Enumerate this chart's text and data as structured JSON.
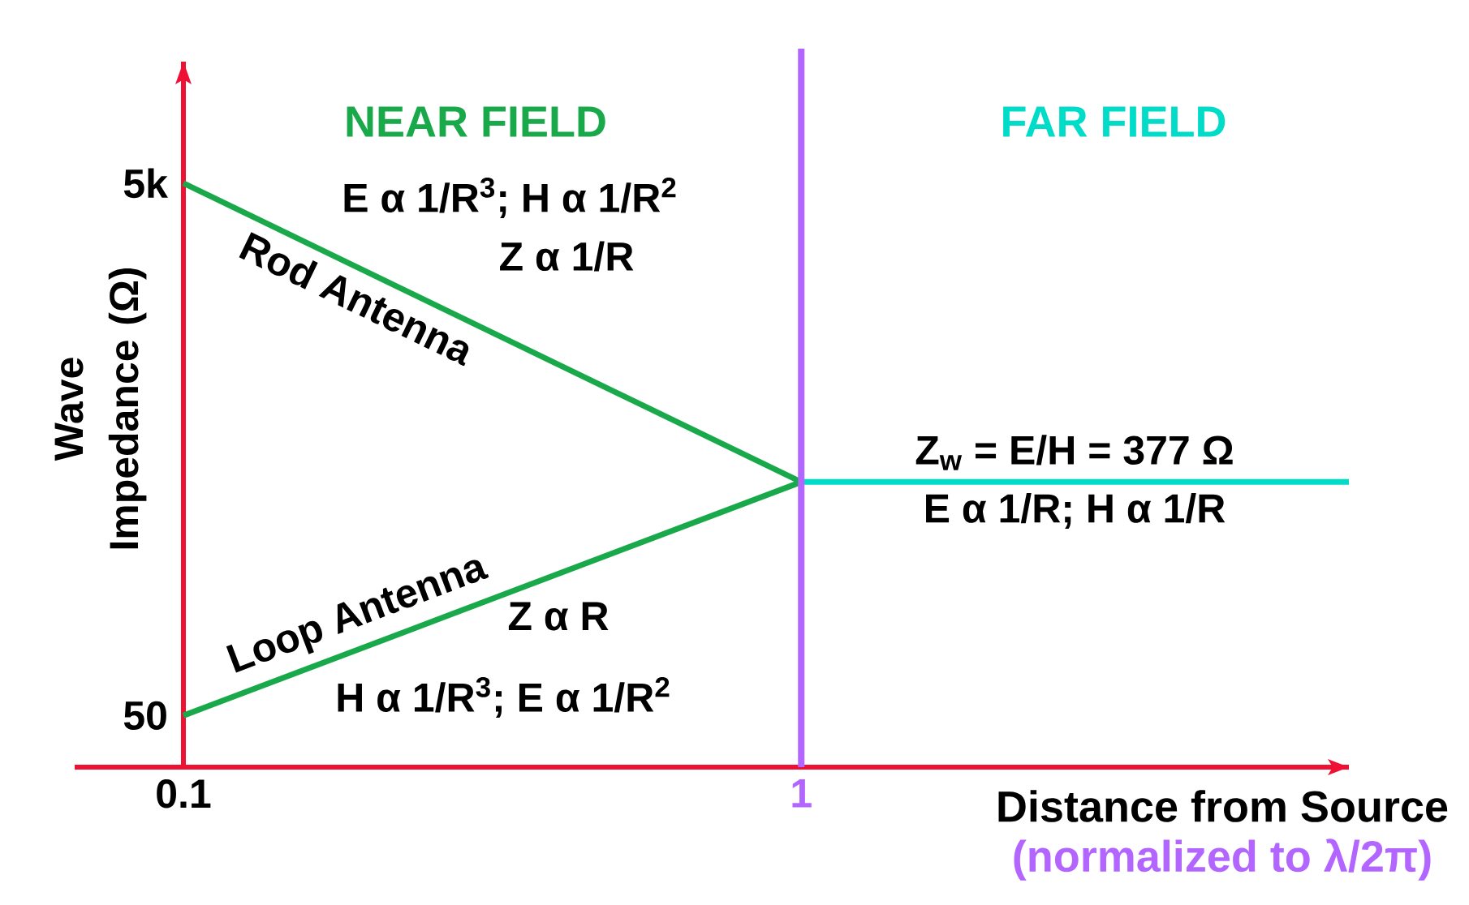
{
  "chart_data": {
    "type": "line",
    "log": "xy",
    "xlabel": "Distance from Source",
    "ylabel": "Wave Impedance (Ω)",
    "xlim": [
      0.1,
      7.7
    ],
    "ylim": [
      32,
      16000
    ],
    "xticks": [
      0.1,
      1
    ],
    "yticks": [
      50,
      {
        "value": 5000,
        "label": "5k"
      }
    ],
    "series": [
      {
        "name": "Rod Antenna",
        "color": "#19a94b",
        "x": [
          0.1,
          1
        ],
        "values": [
          5000,
          377
        ]
      },
      {
        "name": "Loop Antenna",
        "color": "#19a94b",
        "x": [
          0.1,
          1
        ],
        "values": [
          50,
          377
        ]
      },
      {
        "color": "#00dcc8",
        "x": [
          1,
          7.7
        ],
        "values": [
          377,
          377
        ]
      }
    ],
    "ref_lines": [
      {
        "axis": "x",
        "value": 1,
        "color": "#b366ff"
      }
    ],
    "annotations": [
      "NEAR FIELD",
      "FAR FIELD",
      "E α 1/R$^{3}$; H α 1/R$^{2}$",
      "Z α 1/R",
      "Z α R",
      "H α 1/R$^{3}$; E α 1/R$^{2}$",
      "Z$_{w}$ = E/H = 377 Ω",
      "E α 1/R; H α 1/R",
      "(normalized to λ/2π)"
    ]
  }
}
